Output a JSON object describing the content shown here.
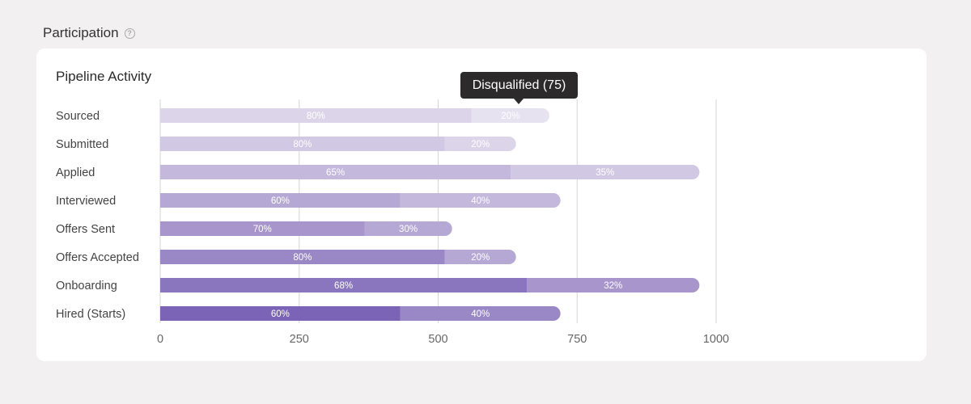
{
  "section": {
    "title": "Participation",
    "help_icon": "help-icon",
    "help_glyph": "?"
  },
  "card": {
    "title": "Pipeline Activity"
  },
  "tooltip": {
    "text": "Disqualified (75)"
  },
  "chart_data": {
    "type": "bar",
    "orientation": "horizontal",
    "stacked": true,
    "title": "Pipeline Activity",
    "categories": [
      "Sourced",
      "Submitted",
      "Applied",
      "Interviewed",
      "Offers Sent",
      "Offers Accepted",
      "Onboarding",
      "Hired (Starts)"
    ],
    "totals": [
      700,
      640,
      970,
      720,
      525,
      640,
      970,
      720
    ],
    "series": [
      {
        "percents": [
          80,
          80,
          65,
          60,
          70,
          80,
          68,
          60
        ],
        "labels": [
          "80%",
          "80%",
          "65%",
          "60%",
          "70%",
          "80%",
          "68%",
          "60%"
        ]
      },
      {
        "percents": [
          20,
          20,
          35,
          40,
          30,
          20,
          32,
          40
        ],
        "labels": [
          "20%",
          "20%",
          "35%",
          "40%",
          "30%",
          "20%",
          "32%",
          "40%"
        ]
      }
    ],
    "segment_colors": [
      [
        "#dcd5ea",
        "#e7e2f0"
      ],
      [
        "#d1c8e4",
        "#dcd5ea"
      ],
      [
        "#c4b8dd",
        "#d1c8e4"
      ],
      [
        "#b6a8d5",
        "#c4b8dd"
      ],
      [
        "#a795cc",
        "#b6a8d5"
      ],
      [
        "#9a88c6",
        "#b6a8d5"
      ],
      [
        "#8a76bf",
        "#a795cc"
      ],
      [
        "#7b64b5",
        "#9a88c6"
      ]
    ],
    "xticks": [
      0,
      250,
      500,
      750,
      1000
    ],
    "xtick_labels": [
      "0",
      "250",
      "500",
      "750",
      "1000"
    ],
    "xlim": [
      0,
      1000
    ],
    "grid": true,
    "gridline_color": "#d6d6d6",
    "label_color": "#ffffff"
  }
}
